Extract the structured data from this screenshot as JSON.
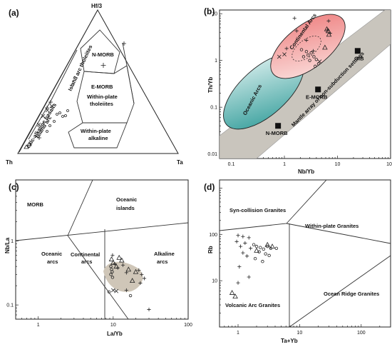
{
  "chart_data": [
    {
      "type": "scatter",
      "panel": "(a)",
      "diagram": "ternary",
      "apex_labels": {
        "top": "Hf/3",
        "left": "Th",
        "right": "Ta"
      },
      "field_labels": {
        "island_arc": "Island arc",
        "calc": "calc-alkaline basalts",
        "ia_thol": "Island arc tholeiites",
        "nmorb": "N-MORB",
        "emorb": "E-MORB",
        "wpt_1": "Within-plate",
        "wpt_2": "tholeiites",
        "wpa_1": "Within-plate",
        "wpa_2": "alkaline"
      }
    },
    {
      "type": "scatter",
      "panel": "(b)",
      "xlabel": "Nb/Yb",
      "ylabel": "Th/Yb",
      "xscale": "log",
      "yscale": "log",
      "xlim": [
        0.06,
        100
      ],
      "ylim": [
        0.008,
        12
      ],
      "xticks": [
        "0.1",
        "1",
        "10",
        "100"
      ],
      "yticks": [
        "0.01",
        "0.1",
        "1",
        "10"
      ],
      "field_labels": {
        "oceanic_arcs": "Oceanic Arcs",
        "continental_arcs": "Continental Arcs",
        "mantle_array": "Mantle array of non-subduction settings"
      },
      "reference_points": [
        {
          "name": "N-MORB",
          "x": 0.76,
          "y": 0.04
        },
        {
          "name": "E-MORB",
          "x": 4.3,
          "y": 0.24
        },
        {
          "name": "OIB",
          "x": 24,
          "y": 1.6
        }
      ],
      "samples": [
        {
          "symbol": "cross",
          "x": 1.55,
          "y": 8.0
        },
        {
          "symbol": "cross",
          "x": 1.7,
          "y": 4.3
        },
        {
          "symbol": "cross",
          "x": 2.6,
          "y": 2.7
        },
        {
          "symbol": "cross",
          "x": 3.5,
          "y": 1.6
        },
        {
          "symbol": "cross",
          "x": 6.5,
          "y": 4.5
        },
        {
          "symbol": "cross",
          "x": 7.3,
          "y": 3.8
        },
        {
          "symbol": "cross",
          "x": 6.8,
          "y": 7.0
        },
        {
          "symbol": "cross",
          "x": 1.1,
          "y": 1.8
        },
        {
          "symbol": "x",
          "x": 0.8,
          "y": 1.2
        },
        {
          "symbol": "x",
          "x": 1.0,
          "y": 1.35
        },
        {
          "symbol": "x",
          "x": 4.6,
          "y": 0.95
        },
        {
          "symbol": "circle",
          "x": 2.1,
          "y": 1.7
        },
        {
          "symbol": "circle",
          "x": 2.6,
          "y": 1.55
        },
        {
          "symbol": "circle",
          "x": 2.8,
          "y": 1.3
        },
        {
          "symbol": "circle",
          "x": 3.2,
          "y": 1.45
        },
        {
          "symbol": "circle",
          "x": 3.6,
          "y": 1.2
        },
        {
          "symbol": "circle",
          "x": 3.0,
          "y": 1.0
        },
        {
          "symbol": "circle",
          "x": 4.0,
          "y": 1.05
        },
        {
          "symbol": "circle",
          "x": 4.4,
          "y": 0.85
        },
        {
          "symbol": "circle",
          "x": 3.8,
          "y": 0.75
        },
        {
          "symbol": "circle",
          "x": 2.3,
          "y": 1.2
        },
        {
          "symbol": "triangle",
          "x": 6.3,
          "y": 4.7
        },
        {
          "symbol": "triangle",
          "x": 6.7,
          "y": 4.3
        },
        {
          "symbol": "triangle",
          "x": 6.9,
          "y": 3.6
        },
        {
          "symbol": "triangle",
          "x": 5.8,
          "y": 1.9
        }
      ]
    },
    {
      "type": "scatter",
      "panel": "(c)",
      "xlabel": "La/Yb",
      "ylabel": "Nb/La",
      "xscale": "log",
      "yscale": "log",
      "xlim": [
        0.5,
        100
      ],
      "ylim": [
        0.06,
        9
      ],
      "xticks": [
        "1",
        "10",
        "100"
      ],
      "yticks": [
        "0.1",
        "1"
      ],
      "field_labels": {
        "morb": "MORB",
        "oi_1": "Oceanic",
        "oi_2": "islands",
        "oa_1": "Oceanic",
        "oa_2": "arcs",
        "ca_1": "Continental",
        "ca_2": "arcs",
        "aa_1": "Alkaline",
        "aa_2": "arcs"
      },
      "samples": [
        {
          "symbol": "triangle",
          "x": 9.5,
          "y": 0.52
        },
        {
          "symbol": "triangle",
          "x": 10.0,
          "y": 0.46
        },
        {
          "symbol": "triangle",
          "x": 12.0,
          "y": 0.55
        },
        {
          "symbol": "triangle",
          "x": 13.0,
          "y": 0.5
        },
        {
          "symbol": "triangle",
          "x": 11.0,
          "y": 0.4
        },
        {
          "symbol": "triangle",
          "x": 16.0,
          "y": 0.36
        },
        {
          "symbol": "triangle",
          "x": 20.0,
          "y": 0.33
        },
        {
          "symbol": "triangle",
          "x": 18.0,
          "y": 0.24
        },
        {
          "symbol": "cross",
          "x": 9.8,
          "y": 0.6
        },
        {
          "symbol": "cross",
          "x": 10.5,
          "y": 0.44
        },
        {
          "symbol": "cross",
          "x": 11.5,
          "y": 0.38
        },
        {
          "symbol": "cross",
          "x": 13.5,
          "y": 0.42
        },
        {
          "symbol": "cross",
          "x": 15.0,
          "y": 0.32
        },
        {
          "symbol": "cross",
          "x": 22.0,
          "y": 0.35
        },
        {
          "symbol": "cross",
          "x": 24.0,
          "y": 0.3
        },
        {
          "symbol": "cross",
          "x": 26.0,
          "y": 0.26
        },
        {
          "symbol": "cross",
          "x": 23.0,
          "y": 0.22
        },
        {
          "symbol": "cross",
          "x": 15.0,
          "y": 0.17
        },
        {
          "symbol": "cross",
          "x": 30.0,
          "y": 0.085
        },
        {
          "symbol": "circle",
          "x": 9.3,
          "y": 0.4
        },
        {
          "symbol": "circle",
          "x": 9.5,
          "y": 0.36
        },
        {
          "symbol": "circle",
          "x": 9.7,
          "y": 0.33
        },
        {
          "symbol": "circle",
          "x": 9.3,
          "y": 0.3
        },
        {
          "symbol": "circle",
          "x": 9.8,
          "y": 0.27
        },
        {
          "symbol": "circle",
          "x": 8.8,
          "y": 0.16
        },
        {
          "symbol": "circle",
          "x": 17.0,
          "y": 0.14
        },
        {
          "symbol": "x",
          "x": 10.0,
          "y": 0.17
        },
        {
          "symbol": "x",
          "x": 11.0,
          "y": 0.165
        }
      ]
    },
    {
      "type": "scatter",
      "panel": "(d)",
      "xlabel": "Ta+Yb",
      "ylabel": "Rb",
      "xscale": "log",
      "yscale": "log",
      "xlim": [
        0.5,
        300
      ],
      "ylim": [
        1,
        1500
      ],
      "xticks": [
        "1",
        "10",
        "100"
      ],
      "yticks": [
        "10",
        "100"
      ],
      "field_labels": {
        "syn": "Syn-collision Granites",
        "wpg": "Within-plate Granites",
        "org": "Ocean Ridge Granites",
        "vag": "Volcanic Arc Granites"
      },
      "samples": [
        {
          "symbol": "cross",
          "x": 1.0,
          "y": 95
        },
        {
          "symbol": "cross",
          "x": 1.2,
          "y": 90
        },
        {
          "symbol": "cross",
          "x": 1.5,
          "y": 85
        },
        {
          "symbol": "cross",
          "x": 0.95,
          "y": 70
        },
        {
          "symbol": "cross",
          "x": 1.3,
          "y": 65
        },
        {
          "symbol": "cross",
          "x": 1.1,
          "y": 55
        },
        {
          "symbol": "cross",
          "x": 1.6,
          "y": 50
        },
        {
          "symbol": "cross",
          "x": 1.2,
          "y": 40
        },
        {
          "symbol": "cross",
          "x": 1.4,
          "y": 34
        },
        {
          "symbol": "cross",
          "x": 1.05,
          "y": 20
        },
        {
          "symbol": "cross",
          "x": 1.5,
          "y": 12
        },
        {
          "symbol": "cross",
          "x": 1.0,
          "y": 9
        },
        {
          "symbol": "circle",
          "x": 1.8,
          "y": 60
        },
        {
          "symbol": "circle",
          "x": 2.0,
          "y": 55
        },
        {
          "symbol": "circle",
          "x": 2.3,
          "y": 52
        },
        {
          "symbol": "circle",
          "x": 2.6,
          "y": 48
        },
        {
          "symbol": "circle",
          "x": 3.0,
          "y": 55
        },
        {
          "symbol": "circle",
          "x": 3.4,
          "y": 50
        },
        {
          "symbol": "circle",
          "x": 2.2,
          "y": 42
        },
        {
          "symbol": "circle",
          "x": 2.8,
          "y": 38
        },
        {
          "symbol": "circle",
          "x": 3.2,
          "y": 35
        },
        {
          "symbol": "circle",
          "x": 4.2,
          "y": 50
        },
        {
          "symbol": "circle",
          "x": 1.9,
          "y": 30
        },
        {
          "symbol": "circle",
          "x": 2.5,
          "y": 26
        },
        {
          "symbol": "triangle",
          "x": 3.0,
          "y": 60
        },
        {
          "symbol": "triangle",
          "x": 3.6,
          "y": 55
        },
        {
          "symbol": "triangle",
          "x": 2.0,
          "y": 45
        },
        {
          "symbol": "triangle",
          "x": 0.8,
          "y": 5.5
        },
        {
          "symbol": "triangle",
          "x": 0.9,
          "y": 4.6
        }
      ]
    }
  ],
  "colors": {
    "frame": "#222222",
    "oceanic_arc_fill": "#4fb3b0",
    "continental_arc_fill": "#f08a8a",
    "mantle_array_fill": "#c9c5bd",
    "panel_c_field_fill": "#cfc6b8",
    "marker_fill": "#111111"
  }
}
